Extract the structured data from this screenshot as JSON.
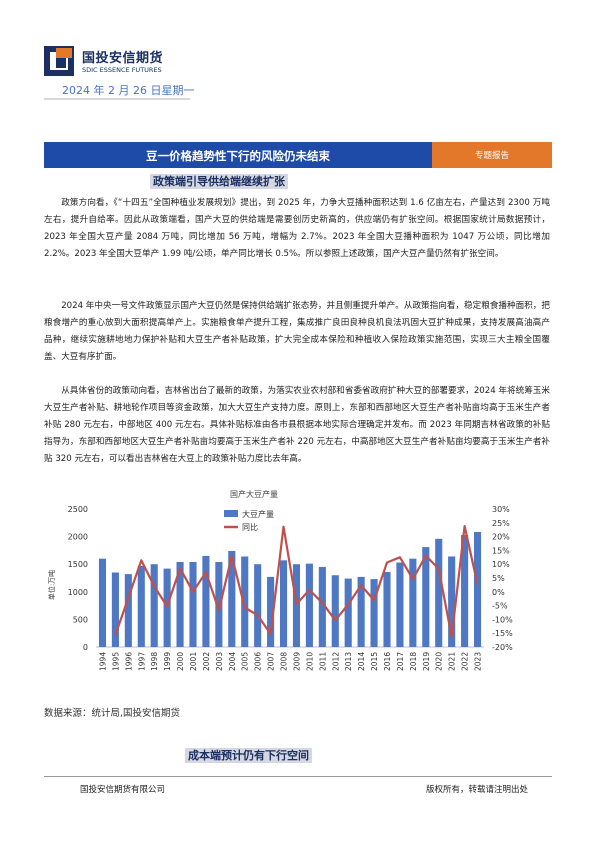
{
  "header": {
    "company_cn": "国投安信期货",
    "company_en": "SDIC ESSENCE FUTURES",
    "date": "2024 年 2 月 26 日星期一"
  },
  "banner": {
    "title": "豆一价格趋势性下行的风险仍未结束",
    "tag": "专题报告"
  },
  "section1": {
    "heading": "政策端引导供给端继续扩张",
    "paragraphs": [
      "政策方向看，《“十四五”全国种植业发展规划》提出，到 2025 年，力争大豆播种面积达到 1.6 亿亩左右，产量达到 2300 万吨左右，提升自给率。因此从政策端看，国产大豆的供给端是需要创历史新高的，供应端仍有扩张空间。根据国家统计局数据预计，2023 年全国大豆产量 2084 万吨，同比增加 56 万吨，增幅为 2.7%。2023 年全国大豆播种面积为 1047 万公顷，同比增加 2.2%。2023 年全国大豆单产 1.99 吨/公顷，单产同比增长 0.5%。所以参照上述政策，国产大豆产量仍然有扩张空间。",
      "2024 年中央一号文件政策显示国产大豆仍然是保持供给端扩张态势，并且侧重提升单产。从政策指向看，稳定粮食播种面积，把粮食增产的重心放到大面积提高单产上。实施粮食单产提升工程，集成推广良田良种良机良法巩固大豆扩种成果，支持发展高油高产品种，继续实施耕地地力保护补贴和大豆生产者补贴政策，扩大完全成本保险和种植收入保险政策实施范围，实现三大主粮全国覆盖、大豆有序扩面。",
      "从具体省份的政策动向看，吉林省出台了最新的政策，为落实农业农村部和省委省政府扩种大豆的部署要求，2024 年将统筹玉米大豆生产者补贴、耕地轮作项目等资金政策，加大大豆生产支持力度。原则上，东部和西部地区大豆生产者补贴亩均高于玉米生产者补贴 280 元左右，中部地区 400 元左右。具体补贴标准由各市县根据本地实际合理确定并发布。而 2023 年同期吉林省政策的补贴指导为，东部和西部地区大豆生产者补贴亩均要高于玉米生产者补 220 元左右，中高部地区大豆生产者补贴亩均要高于玉米生产者补贴 320 元左右，可以看出吉林省在大豆上的政策补贴力度比去年高。"
    ]
  },
  "chart_data": {
    "type": "bar+line",
    "title": "国产大豆产量",
    "ylabel_left": "单位:万吨",
    "categories": [
      "1994",
      "1995",
      "1996",
      "1997",
      "1998",
      "1999",
      "2000",
      "2001",
      "2002",
      "2003",
      "2004",
      "2005",
      "2006",
      "2007",
      "2008",
      "2009",
      "2010",
      "2011",
      "2012",
      "2013",
      "2014",
      "2015",
      "2016",
      "2017",
      "2018",
      "2019",
      "2020",
      "2021",
      "2022",
      "2023"
    ],
    "series": [
      {
        "name": "大豆产量",
        "axis": "left",
        "type": "bar",
        "color": "#4e78c4",
        "values": [
          1600,
          1350,
          1320,
          1470,
          1500,
          1420,
          1540,
          1540,
          1650,
          1540,
          1740,
          1640,
          1500,
          1270,
          1570,
          1500,
          1510,
          1450,
          1300,
          1240,
          1270,
          1230,
          1360,
          1530,
          1600,
          1810,
          1960,
          1640,
          2030,
          2084
        ]
      },
      {
        "name": "同比",
        "axis": "right",
        "type": "line",
        "color": "#c0504d",
        "values": [
          null,
          -15.6,
          -2.2,
          11.4,
          2.0,
          -5.3,
          8.5,
          0.0,
          7.1,
          -6.7,
          13.0,
          -5.7,
          -8.5,
          -15.3,
          23.6,
          -4.5,
          0.7,
          -4.0,
          -10.3,
          -4.6,
          2.4,
          -3.1,
          10.6,
          12.5,
          4.6,
          13.1,
          8.3,
          -16.3,
          23.8,
          2.7
        ]
      }
    ],
    "ylim_left": [
      0,
      2500
    ],
    "yticks_left": [
      "0",
      "500",
      "1000",
      "1500",
      "2000",
      "2500"
    ],
    "ylim_right": [
      -20,
      30
    ],
    "yticks_right": [
      "-20%",
      "-15%",
      "-10%",
      "-5%",
      "0%",
      "5%",
      "10%",
      "15%",
      "20%",
      "25%",
      "30%"
    ],
    "legend": "top-center",
    "grid": false
  },
  "source_note": "数据来源：统计局,国投安信期货",
  "section2": {
    "heading": "成本端预计仍有下行空间"
  },
  "footer": {
    "left": "国投安信期货有限公司",
    "right": "版权所有，转载请注明出处"
  },
  "colors": {
    "brand_navy": "#1b2f63",
    "banner_blue": "#1e4ba8",
    "banner_orange": "#e4782a",
    "bar_blue": "#4e78c4",
    "line_red": "#c0504d"
  }
}
